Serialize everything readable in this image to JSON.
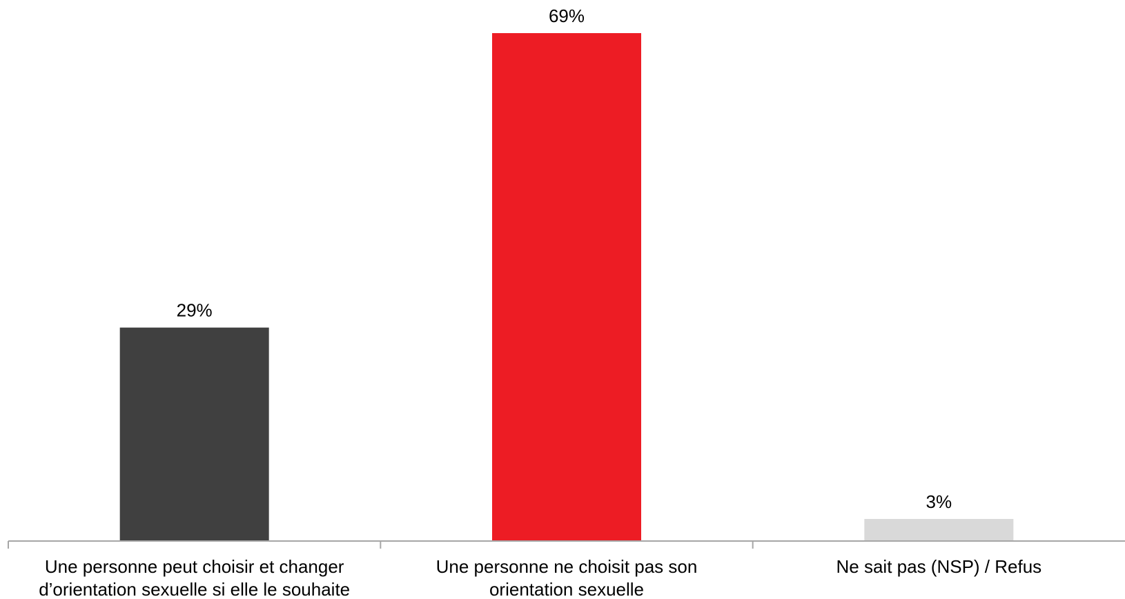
{
  "chart_data": {
    "type": "bar",
    "categories": [
      [
        "Une personne peut choisir et changer",
        "d’orientation sexuelle si elle le souhaite"
      ],
      [
        "Une personne ne choisit pas son",
        "orientation sexuelle"
      ],
      [
        "Ne sait pas (NSP) / Refus"
      ]
    ],
    "values": [
      29,
      69,
      3
    ],
    "value_labels": [
      "29%",
      "69%",
      "3%"
    ],
    "bar_colors": [
      "#404040",
      "#ED1C24",
      "#D9D9D9"
    ],
    "axis_color": "#A6A6A6",
    "ylim": [
      0,
      69
    ],
    "grid": false,
    "legend": "none",
    "title": "",
    "xlabel": "",
    "ylabel": ""
  }
}
